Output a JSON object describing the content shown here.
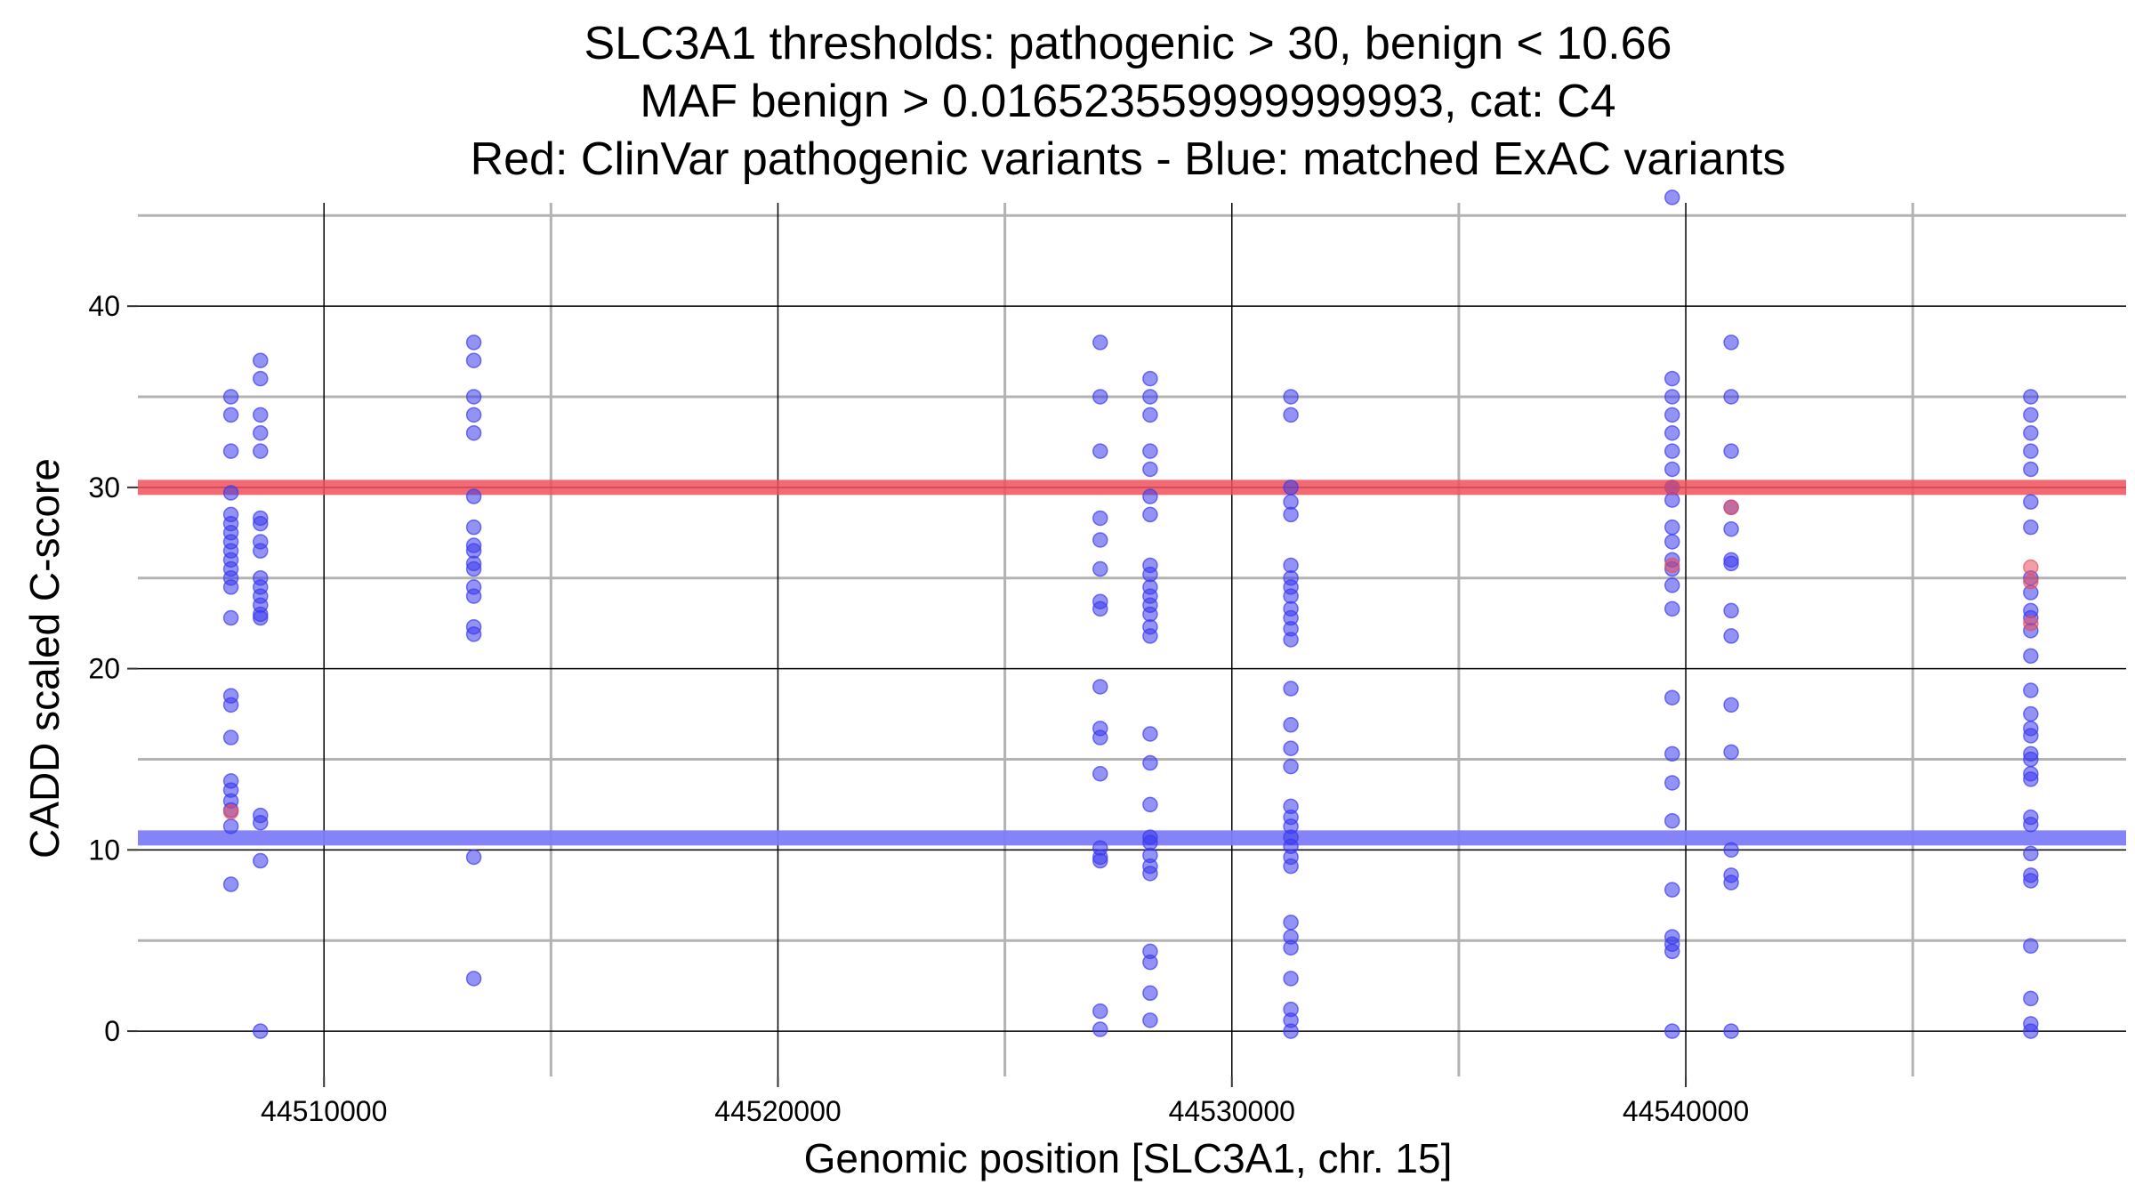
{
  "chart_data": {
    "type": "scatter",
    "title_lines": [
      "SLC3A1 thresholds: pathogenic > 30, benign < 10.66",
      "MAF benign > 0.016523559999999993, cat: C4",
      "Red: ClinVar pathogenic variants - Blue: matched ExAC variants"
    ],
    "xlabel": "Genomic position [SLC3A1, chr. 15]",
    "ylabel": "CADD scaled C-score",
    "xlim": [
      44505900,
      44549700
    ],
    "ylim": [
      -2.5,
      45.7
    ],
    "x_ticks": [
      44510000,
      44520000,
      44530000,
      44540000
    ],
    "x_tick_labels": [
      "44510000",
      "44520000",
      "44530000",
      "44540000"
    ],
    "y_ticks": [
      0,
      10,
      20,
      30,
      40
    ],
    "y_tick_labels": [
      "0",
      "10",
      "20",
      "30",
      "40"
    ],
    "x_minor_grid": [
      44515000,
      44525000,
      44535000,
      44545000
    ],
    "y_minor_grid": [
      5,
      15,
      25,
      35,
      45
    ],
    "thresholds": {
      "pathogenic": {
        "value": 30,
        "color": "#f0505a"
      },
      "benign": {
        "value": 10.66,
        "color": "#7d7cf7"
      }
    },
    "colors": {
      "blue": "#3b3bef",
      "red": "#ea4f5c"
    },
    "series": [
      {
        "name": "matched ExAC variants",
        "color": "blue",
        "points": [
          [
            44507950,
            35
          ],
          [
            44507950,
            34
          ],
          [
            44507950,
            32
          ],
          [
            44507950,
            29.7
          ],
          [
            44507950,
            28.5
          ],
          [
            44507950,
            28
          ],
          [
            44507950,
            27.5
          ],
          [
            44507950,
            27
          ],
          [
            44507950,
            26.5
          ],
          [
            44507950,
            26
          ],
          [
            44507950,
            25.5
          ],
          [
            44507950,
            25
          ],
          [
            44507950,
            24.5
          ],
          [
            44507950,
            22.8
          ],
          [
            44507950,
            18.5
          ],
          [
            44507950,
            18
          ],
          [
            44507950,
            16.2
          ],
          [
            44507950,
            13.8
          ],
          [
            44507950,
            13.3
          ],
          [
            44507950,
            12.7
          ],
          [
            44507950,
            12.2
          ],
          [
            44507950,
            11.3
          ],
          [
            44507950,
            8.1
          ],
          [
            44508600,
            37
          ],
          [
            44508600,
            36
          ],
          [
            44508600,
            34
          ],
          [
            44508600,
            33
          ],
          [
            44508600,
            32
          ],
          [
            44508600,
            28.3
          ],
          [
            44508600,
            28
          ],
          [
            44508600,
            27
          ],
          [
            44508600,
            26.5
          ],
          [
            44508600,
            25
          ],
          [
            44508600,
            24.5
          ],
          [
            44508600,
            24
          ],
          [
            44508600,
            23.5
          ],
          [
            44508600,
            23
          ],
          [
            44508600,
            22.8
          ],
          [
            44508600,
            11.9
          ],
          [
            44508600,
            11.5
          ],
          [
            44508600,
            9.4
          ],
          [
            44508600,
            0
          ],
          [
            44513300,
            38
          ],
          [
            44513300,
            37
          ],
          [
            44513300,
            35
          ],
          [
            44513300,
            34
          ],
          [
            44513300,
            33
          ],
          [
            44513300,
            29.5
          ],
          [
            44513300,
            27.8
          ],
          [
            44513300,
            26.8
          ],
          [
            44513300,
            26.5
          ],
          [
            44513300,
            25.8
          ],
          [
            44513300,
            25.5
          ],
          [
            44513300,
            24.5
          ],
          [
            44513300,
            24
          ],
          [
            44513300,
            22.3
          ],
          [
            44513300,
            21.9
          ],
          [
            44513300,
            9.6
          ],
          [
            44513300,
            2.9
          ],
          [
            44527100,
            38
          ],
          [
            44527100,
            35
          ],
          [
            44527100,
            32
          ],
          [
            44527100,
            28.3
          ],
          [
            44527100,
            27.1
          ],
          [
            44527100,
            25.5
          ],
          [
            44527100,
            23.7
          ],
          [
            44527100,
            23.3
          ],
          [
            44527100,
            19
          ],
          [
            44527100,
            16.7
          ],
          [
            44527100,
            16.2
          ],
          [
            44527100,
            14.2
          ],
          [
            44527100,
            10.1
          ],
          [
            44527100,
            9.6
          ],
          [
            44527100,
            9.4
          ],
          [
            44527100,
            1.1
          ],
          [
            44527100,
            0.1
          ],
          [
            44528200,
            36
          ],
          [
            44528200,
            35
          ],
          [
            44528200,
            34
          ],
          [
            44528200,
            32
          ],
          [
            44528200,
            31
          ],
          [
            44528200,
            29.5
          ],
          [
            44528200,
            28.5
          ],
          [
            44528200,
            25.7
          ],
          [
            44528200,
            25.2
          ],
          [
            44528200,
            24.5
          ],
          [
            44528200,
            24
          ],
          [
            44528200,
            23.5
          ],
          [
            44528200,
            23
          ],
          [
            44528200,
            22.3
          ],
          [
            44528200,
            21.8
          ],
          [
            44528200,
            16.4
          ],
          [
            44528200,
            14.8
          ],
          [
            44528200,
            12.5
          ],
          [
            44528200,
            10.7
          ],
          [
            44528200,
            10.4
          ],
          [
            44528200,
            9.7
          ],
          [
            44528200,
            9.1
          ],
          [
            44528200,
            8.7
          ],
          [
            44528200,
            4.4
          ],
          [
            44528200,
            3.8
          ],
          [
            44528200,
            2.1
          ],
          [
            44528200,
            0.6
          ],
          [
            44531300,
            35
          ],
          [
            44531300,
            34
          ],
          [
            44531300,
            30
          ],
          [
            44531300,
            29.2
          ],
          [
            44531300,
            28.5
          ],
          [
            44531300,
            25.7
          ],
          [
            44531300,
            25
          ],
          [
            44531300,
            24.5
          ],
          [
            44531300,
            24
          ],
          [
            44531300,
            23.3
          ],
          [
            44531300,
            22.8
          ],
          [
            44531300,
            22.2
          ],
          [
            44531300,
            21.6
          ],
          [
            44531300,
            18.9
          ],
          [
            44531300,
            16.9
          ],
          [
            44531300,
            15.6
          ],
          [
            44531300,
            14.6
          ],
          [
            44531300,
            12.4
          ],
          [
            44531300,
            11.8
          ],
          [
            44531300,
            11.3
          ],
          [
            44531300,
            10.7
          ],
          [
            44531300,
            10.2
          ],
          [
            44531300,
            9.6
          ],
          [
            44531300,
            9.1
          ],
          [
            44531300,
            6
          ],
          [
            44531300,
            5.2
          ],
          [
            44531300,
            4.6
          ],
          [
            44531300,
            2.9
          ],
          [
            44531300,
            1.2
          ],
          [
            44531300,
            0.6
          ],
          [
            44531300,
            0
          ],
          [
            44539700,
            46
          ],
          [
            44539700,
            36
          ],
          [
            44539700,
            35
          ],
          [
            44539700,
            34
          ],
          [
            44539700,
            33
          ],
          [
            44539700,
            32
          ],
          [
            44539700,
            31
          ],
          [
            44539700,
            30
          ],
          [
            44539700,
            29.3
          ],
          [
            44539700,
            27.8
          ],
          [
            44539700,
            27
          ],
          [
            44539700,
            26
          ],
          [
            44539700,
            25.5
          ],
          [
            44539700,
            24.6
          ],
          [
            44539700,
            23.3
          ],
          [
            44539700,
            18.4
          ],
          [
            44539700,
            15.3
          ],
          [
            44539700,
            13.7
          ],
          [
            44539700,
            11.6
          ],
          [
            44539700,
            7.8
          ],
          [
            44539700,
            5.2
          ],
          [
            44539700,
            4.8
          ],
          [
            44539700,
            4.4
          ],
          [
            44539700,
            0
          ],
          [
            44541000,
            38
          ],
          [
            44541000,
            35
          ],
          [
            44541000,
            32
          ],
          [
            44541000,
            28.9
          ],
          [
            44541000,
            27.7
          ],
          [
            44541000,
            26
          ],
          [
            44541000,
            25.8
          ],
          [
            44541000,
            23.2
          ],
          [
            44541000,
            21.8
          ],
          [
            44541000,
            18
          ],
          [
            44541000,
            15.4
          ],
          [
            44541000,
            10
          ],
          [
            44541000,
            8.6
          ],
          [
            44541000,
            8.2
          ],
          [
            44541000,
            0
          ],
          [
            44547600,
            35
          ],
          [
            44547600,
            34
          ],
          [
            44547600,
            33
          ],
          [
            44547600,
            32
          ],
          [
            44547600,
            31
          ],
          [
            44547600,
            29.2
          ],
          [
            44547600,
            27.8
          ],
          [
            44547600,
            25
          ],
          [
            44547600,
            24.2
          ],
          [
            44547600,
            23.2
          ],
          [
            44547600,
            22.8
          ],
          [
            44547600,
            22.1
          ],
          [
            44547600,
            20.7
          ],
          [
            44547600,
            18.8
          ],
          [
            44547600,
            17.5
          ],
          [
            44547600,
            16.7
          ],
          [
            44547600,
            16.3
          ],
          [
            44547600,
            15.3
          ],
          [
            44547600,
            15
          ],
          [
            44547600,
            14.2
          ],
          [
            44547600,
            13.9
          ],
          [
            44547600,
            11.8
          ],
          [
            44547600,
            11.4
          ],
          [
            44547600,
            9.8
          ],
          [
            44547600,
            8.6
          ],
          [
            44547600,
            8.3
          ],
          [
            44547600,
            4.7
          ],
          [
            44547600,
            1.8
          ],
          [
            44547600,
            0.4
          ],
          [
            44547600,
            0
          ]
        ]
      },
      {
        "name": "ClinVar pathogenic variants",
        "color": "red",
        "points": [
          [
            44507950,
            12.1
          ],
          [
            44539700,
            30
          ],
          [
            44539700,
            25.7
          ],
          [
            44541000,
            28.9
          ],
          [
            44547600,
            25.6
          ],
          [
            44547600,
            24.8
          ],
          [
            44547600,
            22.5
          ]
        ]
      }
    ]
  }
}
